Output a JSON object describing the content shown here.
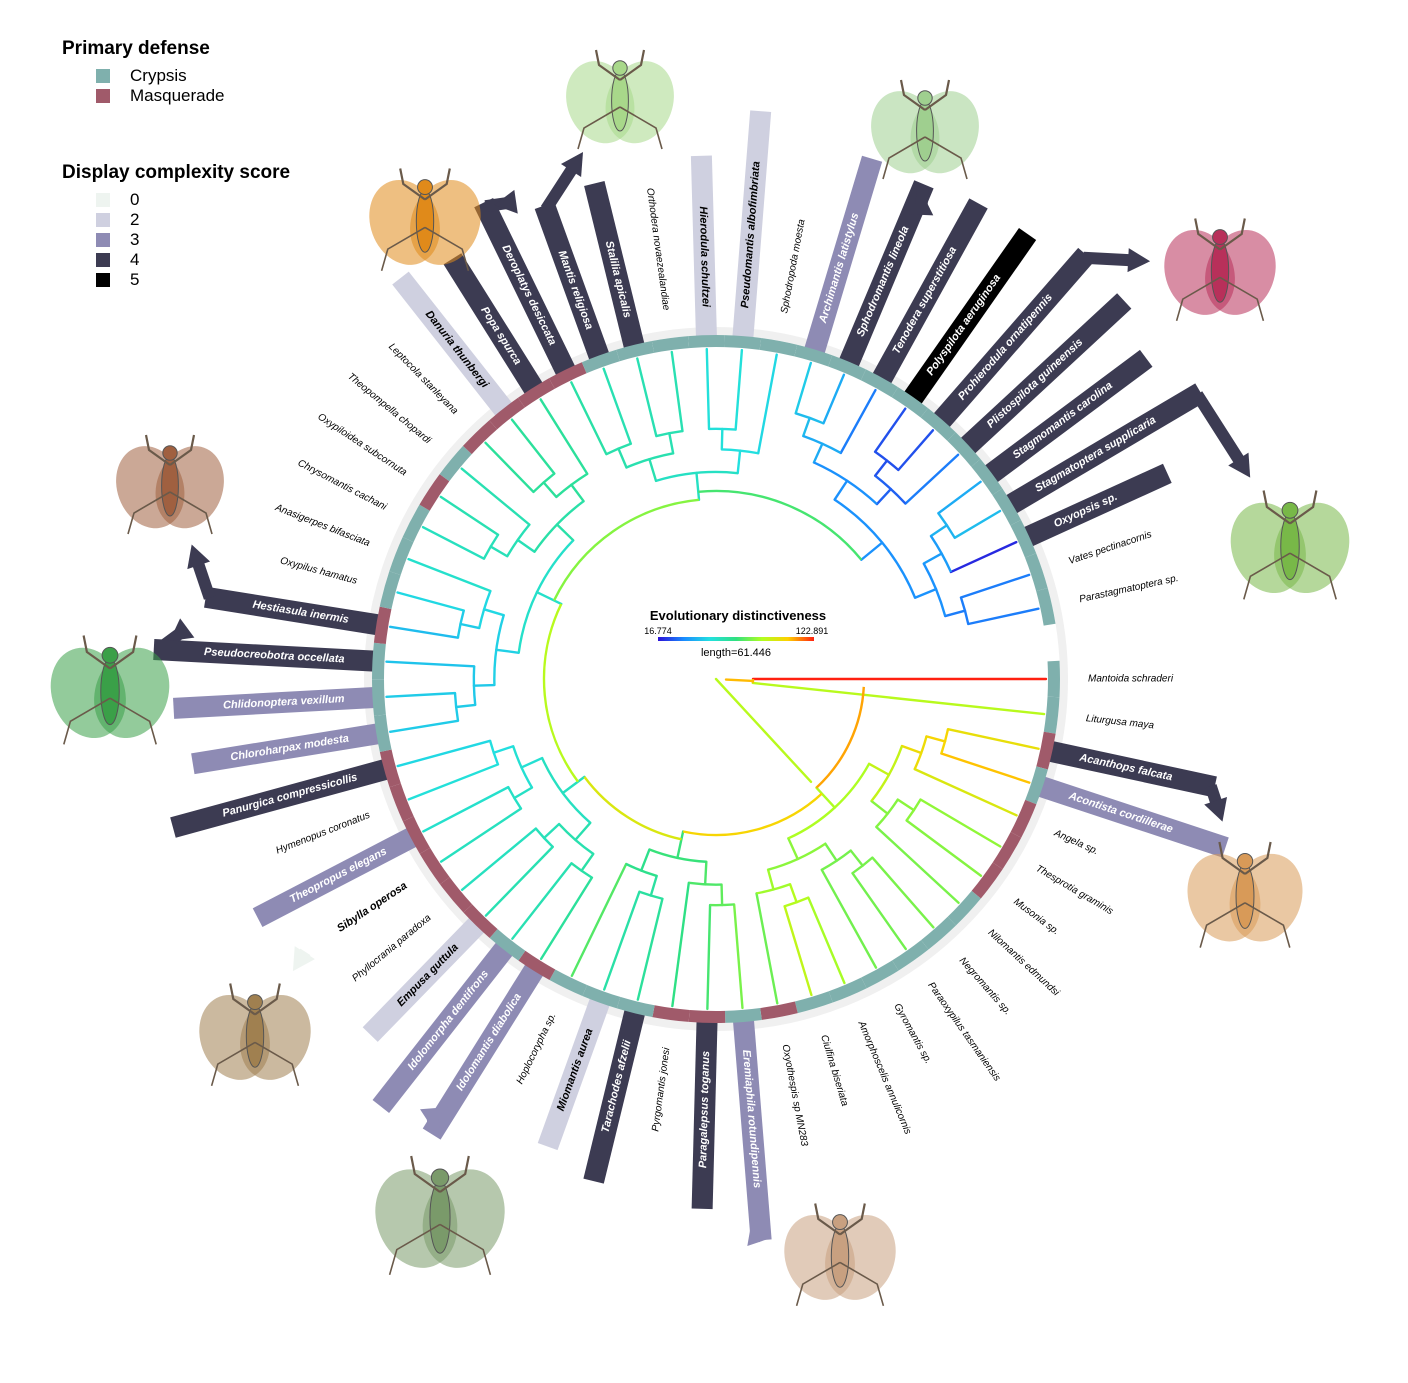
{
  "legend_defense": {
    "title": "Primary defense",
    "items": [
      {
        "label": "Crypsis",
        "color": "#7fb0ad"
      },
      {
        "label": "Masquerade",
        "color": "#a05a6a"
      }
    ]
  },
  "legend_display": {
    "title": "Display complexity score",
    "items": [
      {
        "label": "0",
        "color": "#eef4f0"
      },
      {
        "label": "2",
        "color": "#cfd0e0"
      },
      {
        "label": "3",
        "color": "#8e8bb4"
      },
      {
        "label": "4",
        "color": "#3c3b52"
      },
      {
        "label": "5",
        "color": "#000000"
      }
    ]
  },
  "colorbar": {
    "title": "Evolutionary distinctiveness",
    "min_label": "16.774",
    "max_label": "122.891",
    "length_label": "length=61.446",
    "gradient": [
      "#2a10d8",
      "#1a8cff",
      "#22e0e0",
      "#30e080",
      "#b0ff20",
      "#ffd000",
      "#ff2010"
    ]
  },
  "tree": {
    "tips": [
      {
        "name": "Mantoida schraderi",
        "defense": "crypsis",
        "display": 0,
        "ed": 122.9,
        "highlight": false
      },
      {
        "name": "Liturgusa maya",
        "defense": "crypsis",
        "display": 0,
        "ed": 70,
        "highlight": false
      },
      {
        "name": "Acanthops falcata",
        "defense": "masquerade",
        "display": 4,
        "ed": 85,
        "highlight": true
      },
      {
        "name": "Acontista cordillerae",
        "defense": "crypsis",
        "display": 3,
        "ed": 95,
        "highlight": true
      },
      {
        "name": "Angela sp.",
        "defense": "masquerade",
        "display": 0,
        "ed": 80,
        "highlight": false
      },
      {
        "name": "Thesprotia graminis",
        "defense": "masquerade",
        "display": 0,
        "ed": 62,
        "highlight": false
      },
      {
        "name": "Musonia sp.",
        "defense": "masquerade",
        "display": 0,
        "ed": 60,
        "highlight": false
      },
      {
        "name": "Nilomantis edmundsi",
        "defense": "crypsis",
        "display": 0,
        "ed": 58,
        "highlight": false
      },
      {
        "name": "Negromantis sp.",
        "defense": "crypsis",
        "display": 0,
        "ed": 58,
        "highlight": false
      },
      {
        "name": "Paraoxypilus tasmaniensis",
        "defense": "crypsis",
        "display": 0,
        "ed": 57,
        "highlight": false
      },
      {
        "name": "Gyromantis sp.",
        "defense": "crypsis",
        "display": 0,
        "ed": 57,
        "highlight": false
      },
      {
        "name": "Amorphoscelis annulicornis",
        "defense": "crypsis",
        "display": 0,
        "ed": 66,
        "highlight": false
      },
      {
        "name": "Ciulfina biseriata",
        "defense": "crypsis",
        "display": 0,
        "ed": 72,
        "highlight": false
      },
      {
        "name": "Oxyothespis sp MN283",
        "defense": "masquerade",
        "display": 0,
        "ed": 56,
        "highlight": false
      },
      {
        "name": "Eremiaphila rotundipennis",
        "defense": "crypsis",
        "display": 3,
        "ed": 58,
        "highlight": true
      },
      {
        "name": "Paragalepsus toganus",
        "defense": "masquerade",
        "display": 4,
        "ed": 50,
        "highlight": true
      },
      {
        "name": "Pyrgomantis jonesi",
        "defense": "masquerade",
        "display": 0,
        "ed": 46,
        "highlight": false
      },
      {
        "name": "Tarachodes afzelii",
        "defense": "crypsis",
        "display": 4,
        "ed": 42,
        "highlight": true
      },
      {
        "name": "Miomantis aurea",
        "defense": "crypsis",
        "display": 2,
        "ed": 40,
        "highlight": true
      },
      {
        "name": "Hoplocorypha sp.",
        "defense": "crypsis",
        "display": 0,
        "ed": 52,
        "highlight": false
      },
      {
        "name": "Idolomantis diabolica",
        "defense": "masquerade",
        "display": 3,
        "ed": 42,
        "highlight": true
      },
      {
        "name": "Idolomorpha dentifrons",
        "defense": "crypsis",
        "display": 3,
        "ed": 38,
        "highlight": true
      },
      {
        "name": "Empusa guttula",
        "defense": "masquerade",
        "display": 2,
        "ed": 38,
        "highlight": true
      },
      {
        "name": "Phyllocrania paradoxa",
        "defense": "masquerade",
        "display": 0,
        "ed": 36,
        "highlight": false
      },
      {
        "name": "Sibylla operosa",
        "defense": "masquerade",
        "display": 0,
        "ed": 36,
        "highlight": true
      },
      {
        "name": "Theopropus elegans",
        "defense": "masquerade",
        "display": 3,
        "ed": 34,
        "highlight": true
      },
      {
        "name": "Hymenopus coronatus",
        "defense": "masquerade",
        "display": 0,
        "ed": 32,
        "highlight": false
      },
      {
        "name": "Panurgica compressicollis",
        "defense": "masquerade",
        "display": 4,
        "ed": 30,
        "highlight": true
      },
      {
        "name": "Chloroharpax modesta",
        "defense": "crypsis",
        "display": 3,
        "ed": 28,
        "highlight": true
      },
      {
        "name": "Chlidonoptera vexillum",
        "defense": "crypsis",
        "display": 3,
        "ed": 28,
        "highlight": true
      },
      {
        "name": "Pseudocreobotra occellata",
        "defense": "crypsis",
        "display": 4,
        "ed": 27,
        "highlight": true
      },
      {
        "name": "Hestiasula inermis",
        "defense": "masquerade",
        "display": 4,
        "ed": 26,
        "highlight": true
      },
      {
        "name": "Oxypilus hamatus",
        "defense": "crypsis",
        "display": 0,
        "ed": 30,
        "highlight": false
      },
      {
        "name": "Anasigerpes bifasciata",
        "defense": "crypsis",
        "display": 0,
        "ed": 34,
        "highlight": false
      },
      {
        "name": "Chrysomantis cachani",
        "defense": "crypsis",
        "display": 0,
        "ed": 36,
        "highlight": false
      },
      {
        "name": "Oxypiloidea subcornuta",
        "defense": "masquerade",
        "display": 0,
        "ed": 38,
        "highlight": false
      },
      {
        "name": "Theopompella chopardi",
        "defense": "crypsis",
        "display": 0,
        "ed": 38,
        "highlight": false
      },
      {
        "name": "Leptocola stanleyana",
        "defense": "masquerade",
        "display": 0,
        "ed": 42,
        "highlight": false
      },
      {
        "name": "Danuria thunbergi",
        "defense": "masquerade",
        "display": 2,
        "ed": 42,
        "highlight": true
      },
      {
        "name": "Popa spurca",
        "defense": "masquerade",
        "display": 4,
        "ed": 42,
        "highlight": true
      },
      {
        "name": "Deroplatys desiccata",
        "defense": "masquerade",
        "display": 4,
        "ed": 40,
        "highlight": true
      },
      {
        "name": "Mantis religiosa",
        "defense": "crypsis",
        "display": 4,
        "ed": 38,
        "highlight": true
      },
      {
        "name": "Stalilia apicalis",
        "defense": "crypsis",
        "display": 4,
        "ed": 38,
        "highlight": true
      },
      {
        "name": "Orthodera novaezealandiae",
        "defense": "crypsis",
        "display": 0,
        "ed": 38,
        "highlight": false
      },
      {
        "name": "Hierodula schultzei",
        "defense": "crypsis",
        "display": 2,
        "ed": 32,
        "highlight": true
      },
      {
        "name": "Pseudomantis albofimbriata",
        "defense": "crypsis",
        "display": 2,
        "ed": 32,
        "highlight": true
      },
      {
        "name": "Sphodropoda moesta",
        "defense": "crypsis",
        "display": 0,
        "ed": 30,
        "highlight": false
      },
      {
        "name": "Archimantis latistylus",
        "defense": "crypsis",
        "display": 3,
        "ed": 28,
        "highlight": true
      },
      {
        "name": "Sphodromantis lineola",
        "defense": "crypsis",
        "display": 4,
        "ed": 24,
        "highlight": true
      },
      {
        "name": "Tenodera superstitiosa",
        "defense": "crypsis",
        "display": 4,
        "ed": 20,
        "highlight": true
      },
      {
        "name": "Polyspilota aeruginosa",
        "defense": "crypsis",
        "display": 5,
        "ed": 18,
        "highlight": true
      },
      {
        "name": "Prohierodula ornatipennis",
        "defense": "crypsis",
        "display": 4,
        "ed": 18,
        "highlight": true
      },
      {
        "name": "Plistospilota guineensis",
        "defense": "crypsis",
        "display": 4,
        "ed": 20,
        "highlight": true
      },
      {
        "name": "Stagmomantis carolina",
        "defense": "crypsis",
        "display": 4,
        "ed": 24,
        "highlight": true
      },
      {
        "name": "Stagmatoptera supplicaria",
        "defense": "crypsis",
        "display": 4,
        "ed": 26,
        "highlight": true
      },
      {
        "name": "Oxyopsis sp.",
        "defense": "crypsis",
        "display": 4,
        "ed": 17,
        "highlight": true
      },
      {
        "name": "Vates pectinacornis",
        "defense": "crypsis",
        "display": 0,
        "ed": 20,
        "highlight": false
      },
      {
        "name": "Parastagmatoptera sp.",
        "defense": "crypsis",
        "display": 0,
        "ed": 20,
        "highlight": false
      }
    ]
  },
  "illustrations": [
    {
      "icon": "dead-leaf-mantis-icon",
      "color": "#e08a1a"
    },
    {
      "icon": "green-mantis-icon",
      "color": "#a8d88a"
    },
    {
      "icon": "leaf-mantis-icon",
      "color": "#9fcf8f"
    },
    {
      "icon": "orchid-wing-mantis-icon",
      "color": "#b8305a"
    },
    {
      "icon": "stagmatoptera-mantis-icon",
      "color": "#78b848"
    },
    {
      "icon": "acanthops-mantis-icon",
      "color": "#d89a58"
    },
    {
      "icon": "eremiaphila-mantis-icon",
      "color": "#c8a080"
    },
    {
      "icon": "devil-flower-mantis-icon",
      "color": "#7a9a6a"
    },
    {
      "icon": "stick-mantis-icon",
      "color": "#a08050"
    },
    {
      "icon": "spiny-flower-mantis-icon",
      "color": "#3aa048"
    },
    {
      "icon": "hestiasula-mantis-icon",
      "color": "#a06040"
    }
  ]
}
